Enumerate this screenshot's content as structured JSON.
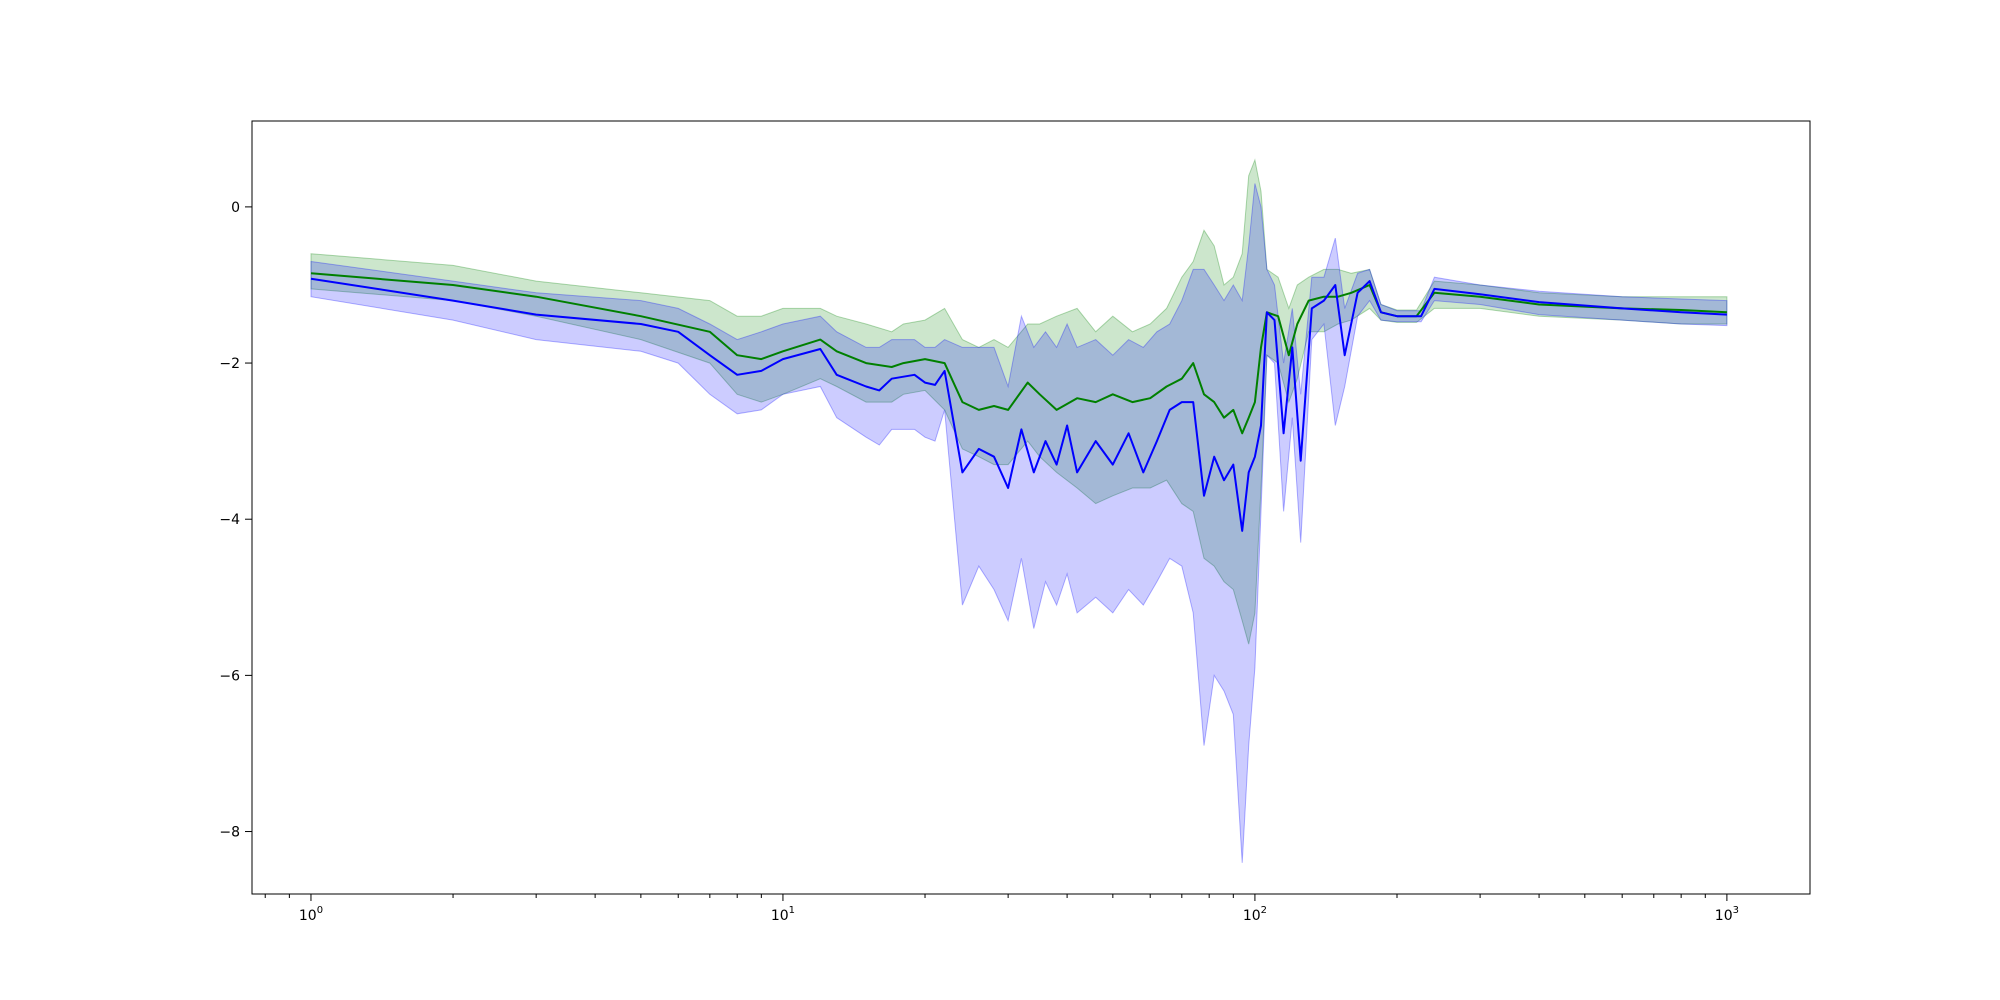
{
  "chart_data": {
    "type": "line",
    "xscale": "log",
    "xlim": [
      0.75,
      1500
    ],
    "ylim": [
      -8.8,
      1.1
    ],
    "grid": false,
    "legend": "none",
    "xticks": [
      {
        "value": 1,
        "base": "10",
        "exp": "0"
      },
      {
        "value": 10,
        "base": "10",
        "exp": "1"
      },
      {
        "value": 100,
        "base": "10",
        "exp": "2"
      },
      {
        "value": 1000,
        "base": "10",
        "exp": "3"
      }
    ],
    "yticks": [
      {
        "value": 0,
        "label": "0"
      },
      {
        "value": -2,
        "label": "−2"
      },
      {
        "value": -4,
        "label": "−4"
      },
      {
        "value": -6,
        "label": "−6"
      },
      {
        "value": -8,
        "label": "−8"
      }
    ],
    "series": [
      {
        "color": "#008000",
        "band_color": "#008000",
        "band_opacity": 0.2,
        "points": [
          [
            1,
            -0.85,
            -0.6,
            -1.05
          ],
          [
            2,
            -1.0,
            -0.75,
            -1.2
          ],
          [
            3,
            -1.15,
            -0.95,
            -1.4
          ],
          [
            5,
            -1.4,
            -1.1,
            -1.7
          ],
          [
            7,
            -1.6,
            -1.2,
            -2.0
          ],
          [
            8,
            -1.9,
            -1.4,
            -2.4
          ],
          [
            9,
            -1.95,
            -1.4,
            -2.5
          ],
          [
            10,
            -1.85,
            -1.3,
            -2.4
          ],
          [
            12,
            -1.7,
            -1.3,
            -2.2
          ],
          [
            13,
            -1.85,
            -1.4,
            -2.3
          ],
          [
            15,
            -2.0,
            -1.5,
            -2.5
          ],
          [
            17,
            -2.05,
            -1.6,
            -2.5
          ],
          [
            18,
            -2.0,
            -1.5,
            -2.4
          ],
          [
            20,
            -1.95,
            -1.45,
            -2.35
          ],
          [
            22,
            -2.0,
            -1.3,
            -2.6
          ],
          [
            24,
            -2.5,
            -1.7,
            -3.1
          ],
          [
            26,
            -2.6,
            -1.8,
            -3.2
          ],
          [
            28,
            -2.55,
            -1.7,
            -3.3
          ],
          [
            30,
            -2.6,
            -1.8,
            -3.3
          ],
          [
            33,
            -2.25,
            -1.5,
            -3.0
          ],
          [
            35,
            -2.4,
            -1.5,
            -3.2
          ],
          [
            38,
            -2.6,
            -1.4,
            -3.4
          ],
          [
            42,
            -2.45,
            -1.3,
            -3.6
          ],
          [
            46,
            -2.5,
            -1.6,
            -3.8
          ],
          [
            50,
            -2.4,
            -1.4,
            -3.7
          ],
          [
            55,
            -2.5,
            -1.6,
            -3.6
          ],
          [
            60,
            -2.45,
            -1.5,
            -3.6
          ],
          [
            65,
            -2.3,
            -1.3,
            -3.5
          ],
          [
            70,
            -2.2,
            -0.9,
            -3.8
          ],
          [
            74,
            -2.0,
            -0.7,
            -3.9
          ],
          [
            78,
            -2.4,
            -0.3,
            -4.5
          ],
          [
            82,
            -2.5,
            -0.5,
            -4.6
          ],
          [
            86,
            -2.7,
            -1.0,
            -4.8
          ],
          [
            90,
            -2.6,
            -0.9,
            -4.9
          ],
          [
            94,
            -2.9,
            -0.6,
            -5.3
          ],
          [
            97,
            -2.7,
            0.4,
            -5.6
          ],
          [
            100,
            -2.5,
            0.6,
            -5.2
          ],
          [
            103,
            -1.8,
            0.2,
            -3.6
          ],
          [
            106,
            -1.35,
            -0.8,
            -1.9
          ],
          [
            112,
            -1.4,
            -0.9,
            -2.0
          ],
          [
            118,
            -1.9,
            -1.3,
            -2.5
          ],
          [
            123,
            -1.5,
            -1.0,
            -2.2
          ],
          [
            130,
            -1.2,
            -0.9,
            -1.6
          ],
          [
            140,
            -1.15,
            -0.8,
            -1.6
          ],
          [
            150,
            -1.15,
            -0.8,
            -1.5
          ],
          [
            160,
            -1.1,
            -0.85,
            -1.45
          ],
          [
            175,
            -1.0,
            -0.8,
            -1.3
          ],
          [
            185,
            -1.35,
            -1.25,
            -1.45
          ],
          [
            200,
            -1.4,
            -1.32,
            -1.48
          ],
          [
            220,
            -1.4,
            -1.32,
            -1.48
          ],
          [
            240,
            -1.1,
            -0.95,
            -1.3
          ],
          [
            300,
            -1.15,
            -1.0,
            -1.3
          ],
          [
            400,
            -1.25,
            -1.1,
            -1.4
          ],
          [
            600,
            -1.3,
            -1.15,
            -1.45
          ],
          [
            800,
            -1.32,
            -1.15,
            -1.5
          ],
          [
            1000,
            -1.35,
            -1.15,
            -1.5
          ]
        ]
      },
      {
        "color": "#0000ff",
        "band_color": "#0000ff",
        "band_opacity": 0.2,
        "points": [
          [
            1,
            -0.92,
            -0.7,
            -1.15
          ],
          [
            2,
            -1.2,
            -0.95,
            -1.45
          ],
          [
            3,
            -1.38,
            -1.1,
            -1.7
          ],
          [
            5,
            -1.5,
            -1.2,
            -1.85
          ],
          [
            6,
            -1.6,
            -1.3,
            -2.0
          ],
          [
            7,
            -1.9,
            -1.5,
            -2.4
          ],
          [
            8,
            -2.15,
            -1.7,
            -2.65
          ],
          [
            9,
            -2.1,
            -1.6,
            -2.6
          ],
          [
            10,
            -1.95,
            -1.5,
            -2.4
          ],
          [
            12,
            -1.82,
            -1.4,
            -2.3
          ],
          [
            13,
            -2.15,
            -1.6,
            -2.7
          ],
          [
            15,
            -2.3,
            -1.8,
            -2.95
          ],
          [
            16,
            -2.35,
            -1.8,
            -3.05
          ],
          [
            17,
            -2.2,
            -1.7,
            -2.85
          ],
          [
            19,
            -2.15,
            -1.7,
            -2.85
          ],
          [
            20,
            -2.25,
            -1.8,
            -2.95
          ],
          [
            21,
            -2.28,
            -1.8,
            -3.0
          ],
          [
            22,
            -2.1,
            -1.7,
            -2.6
          ],
          [
            24,
            -3.4,
            -1.8,
            -5.1
          ],
          [
            26,
            -3.1,
            -1.8,
            -4.6
          ],
          [
            28,
            -3.2,
            -1.8,
            -4.9
          ],
          [
            30,
            -3.6,
            -2.3,
            -5.3
          ],
          [
            32,
            -2.85,
            -1.4,
            -4.5
          ],
          [
            34,
            -3.4,
            -1.8,
            -5.4
          ],
          [
            36,
            -3.0,
            -1.6,
            -4.8
          ],
          [
            38,
            -3.3,
            -1.8,
            -5.1
          ],
          [
            40,
            -2.8,
            -1.5,
            -4.7
          ],
          [
            42,
            -3.4,
            -1.8,
            -5.2
          ],
          [
            46,
            -3.0,
            -1.7,
            -5.0
          ],
          [
            50,
            -3.3,
            -1.9,
            -5.2
          ],
          [
            54,
            -2.9,
            -1.7,
            -4.9
          ],
          [
            58,
            -3.4,
            -1.8,
            -5.1
          ],
          [
            62,
            -3.0,
            -1.6,
            -4.8
          ],
          [
            66,
            -2.6,
            -1.5,
            -4.5
          ],
          [
            70,
            -2.5,
            -1.2,
            -4.6
          ],
          [
            74,
            -2.5,
            -0.8,
            -5.2
          ],
          [
            78,
            -3.7,
            -0.8,
            -6.9
          ],
          [
            82,
            -3.2,
            -1.0,
            -6.0
          ],
          [
            86,
            -3.5,
            -1.2,
            -6.2
          ],
          [
            90,
            -3.3,
            -1.0,
            -6.5
          ],
          [
            94,
            -4.15,
            -1.2,
            -8.4
          ],
          [
            97,
            -3.4,
            -0.5,
            -6.9
          ],
          [
            100,
            -3.2,
            0.3,
            -5.9
          ],
          [
            103,
            -2.8,
            0.0,
            -3.9
          ],
          [
            106,
            -1.35,
            -0.8,
            -1.9
          ],
          [
            110,
            -1.45,
            -1.0,
            -2.0
          ],
          [
            115,
            -2.9,
            -2.0,
            -3.9
          ],
          [
            120,
            -1.8,
            -1.3,
            -2.7
          ],
          [
            125,
            -3.25,
            -2.4,
            -4.3
          ],
          [
            132,
            -1.3,
            -0.9,
            -1.7
          ],
          [
            140,
            -1.2,
            -0.9,
            -1.5
          ],
          [
            148,
            -1.0,
            -0.4,
            -2.8
          ],
          [
            155,
            -1.9,
            -1.3,
            -2.3
          ],
          [
            165,
            -1.1,
            -0.85,
            -1.4
          ],
          [
            175,
            -0.95,
            -0.8,
            -1.2
          ],
          [
            185,
            -1.35,
            -1.25,
            -1.45
          ],
          [
            200,
            -1.4,
            -1.33,
            -1.47
          ],
          [
            225,
            -1.4,
            -1.33,
            -1.47
          ],
          [
            240,
            -1.05,
            -0.9,
            -1.2
          ],
          [
            300,
            -1.12,
            -1.0,
            -1.25
          ],
          [
            400,
            -1.22,
            -1.08,
            -1.38
          ],
          [
            600,
            -1.3,
            -1.15,
            -1.45
          ],
          [
            800,
            -1.35,
            -1.18,
            -1.5
          ],
          [
            1000,
            -1.38,
            -1.2,
            -1.52
          ]
        ]
      }
    ]
  }
}
